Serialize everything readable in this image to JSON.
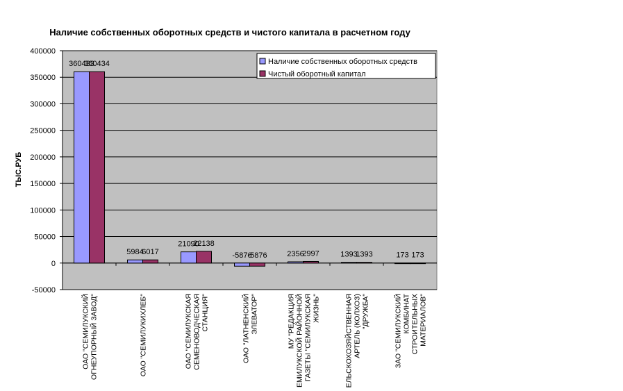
{
  "chart_data": {
    "type": "bar",
    "title": "Наличие собственных оборотных средств и чистого капитала в расчетном году",
    "ylabel": "ТЫС.РУБ",
    "xlabel": "",
    "ylim": [
      -50000,
      400000
    ],
    "yticks": [
      -50000,
      0,
      50000,
      100000,
      150000,
      200000,
      250000,
      300000,
      350000,
      400000
    ],
    "grid": true,
    "legend_position": "top-right",
    "categories": [
      [
        "ОАО \"СЕМИЛУКСКИЙ",
        "ОГНЕУПОРНЫЙ ЗАВОД\""
      ],
      [
        "ОАО \"СЕМИЛУКИХЛЕБ\""
      ],
      [
        "ОАО \"СЕМИЛУКСКАЯ",
        "СЕМЕНОВОДЧЕСКАЯ",
        "СТАНЦИЯ\""
      ],
      [
        "ОАО \"ЛАТНЕНСКИЙ",
        "ЭЛЕВАТОР\""
      ],
      [
        "МУ \"РЕДАКЦИЯ",
        "СЕМИЛУКСКОЙ РАЙОННОЙ",
        "ГАЗЕТЫ \"СЕМИЛУКСКАЯ",
        "ЖИЗНЬ\""
      ],
      [
        "СЕЛЬСКОХОЗЯЙСТВЕННАЯ",
        "АРТЕЛЬ (КОЛХОЗ)",
        "\"ДРУЖБА\""
      ],
      [
        "ЗАО \"СЕМИЛУКСКИЙ",
        "КОМБИНАТ",
        "СТРОИТЕЛЬНЫХ",
        "МАТЕРИАЛОВ\""
      ]
    ],
    "series": [
      {
        "name": "Наличие собственных оборотных средств",
        "color": "#9999FF",
        "values": [
          360433,
          5984,
          21090,
          -5876,
          2356,
          1393,
          173
        ],
        "labels": [
          "360433",
          "5984",
          "21090",
          "-5876",
          "2356",
          "1393",
          "173"
        ]
      },
      {
        "name": "Чистый оборотный капитал",
        "color": "#993366",
        "values": [
          360434,
          6017,
          22138,
          -5876,
          2997,
          1393,
          173
        ],
        "labels": [
          "360434",
          "6017",
          "22138",
          "-5876",
          "2997",
          "1393",
          "173"
        ]
      }
    ],
    "plot_background": "#C0C0C0"
  }
}
